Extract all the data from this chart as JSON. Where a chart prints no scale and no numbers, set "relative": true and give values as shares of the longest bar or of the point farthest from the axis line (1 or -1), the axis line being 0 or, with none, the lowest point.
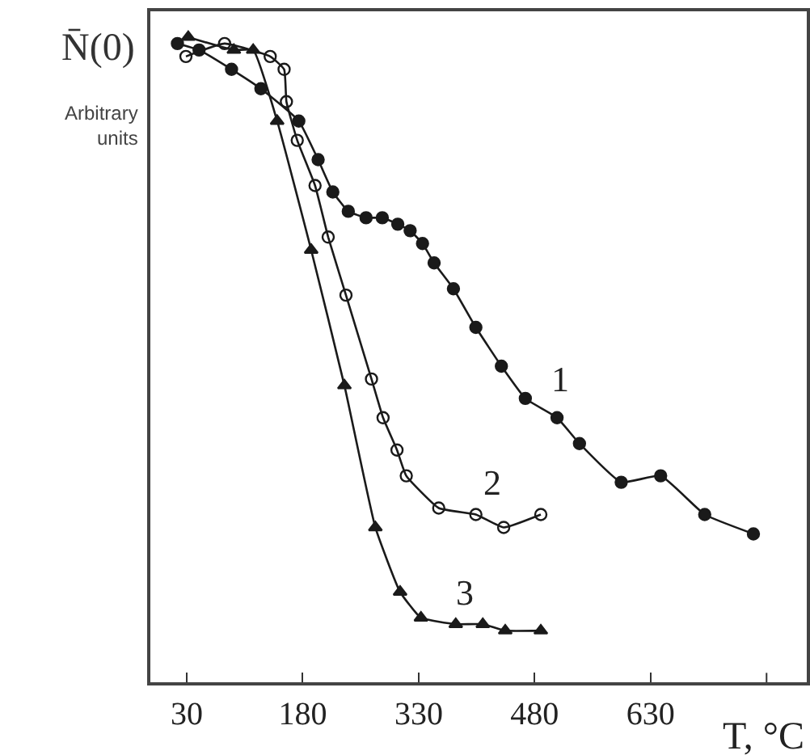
{
  "chart_data": {
    "type": "line",
    "ylabel": "N̄(0)",
    "xlabel": "T, °C",
    "relative": true,
    "annotations": [
      "Arbitrary units"
    ],
    "xlim": [
      -17,
      832
    ],
    "xticks": [
      30,
      180,
      330,
      480,
      630,
      {
        "value": 780,
        "label": null
      }
    ],
    "grid": false,
    "legend": false,
    "line_style": "solid",
    "series": [
      {
        "name": "1",
        "color": "#1a1a1a",
        "marker": "circle",
        "x": [
          18,
          46,
          88,
          126,
          175,
          200,
          219,
          239,
          262,
          283,
          303,
          319,
          335,
          350,
          375,
          404,
          437,
          468,
          509,
          538,
          592,
          643,
          700,
          763
        ],
        "values": [
          0.99,
          0.98,
          0.95,
          0.92,
          0.87,
          0.81,
          0.76,
          0.73,
          0.72,
          0.72,
          0.71,
          0.7,
          0.68,
          0.65,
          0.61,
          0.55,
          0.49,
          0.44,
          0.41,
          0.37,
          0.31,
          0.32,
          0.26,
          0.23
        ]
      },
      {
        "name": "2",
        "color": "#1a1a1a",
        "marker": "circle-open",
        "x": [
          29,
          79,
          138,
          156,
          159,
          173,
          196,
          213,
          236,
          269,
          284,
          302,
          314,
          356,
          404,
          440,
          488
        ],
        "values": [
          0.97,
          0.99,
          0.97,
          0.95,
          0.9,
          0.84,
          0.77,
          0.69,
          0.6,
          0.47,
          0.41,
          0.36,
          0.32,
          0.27,
          0.26,
          0.24,
          0.26
        ]
      },
      {
        "name": "3",
        "color": "#1a1a1a",
        "marker": "triangle",
        "x": [
          32,
          91,
          116,
          147,
          191,
          234,
          274,
          306,
          333,
          378,
          413,
          442,
          488
        ],
        "values": [
          1,
          0.98,
          0.98,
          0.87,
          0.67,
          0.46,
          0.24,
          0.14,
          0.1,
          0.09,
          0.09,
          0.08,
          0.08
        ]
      }
    ]
  }
}
